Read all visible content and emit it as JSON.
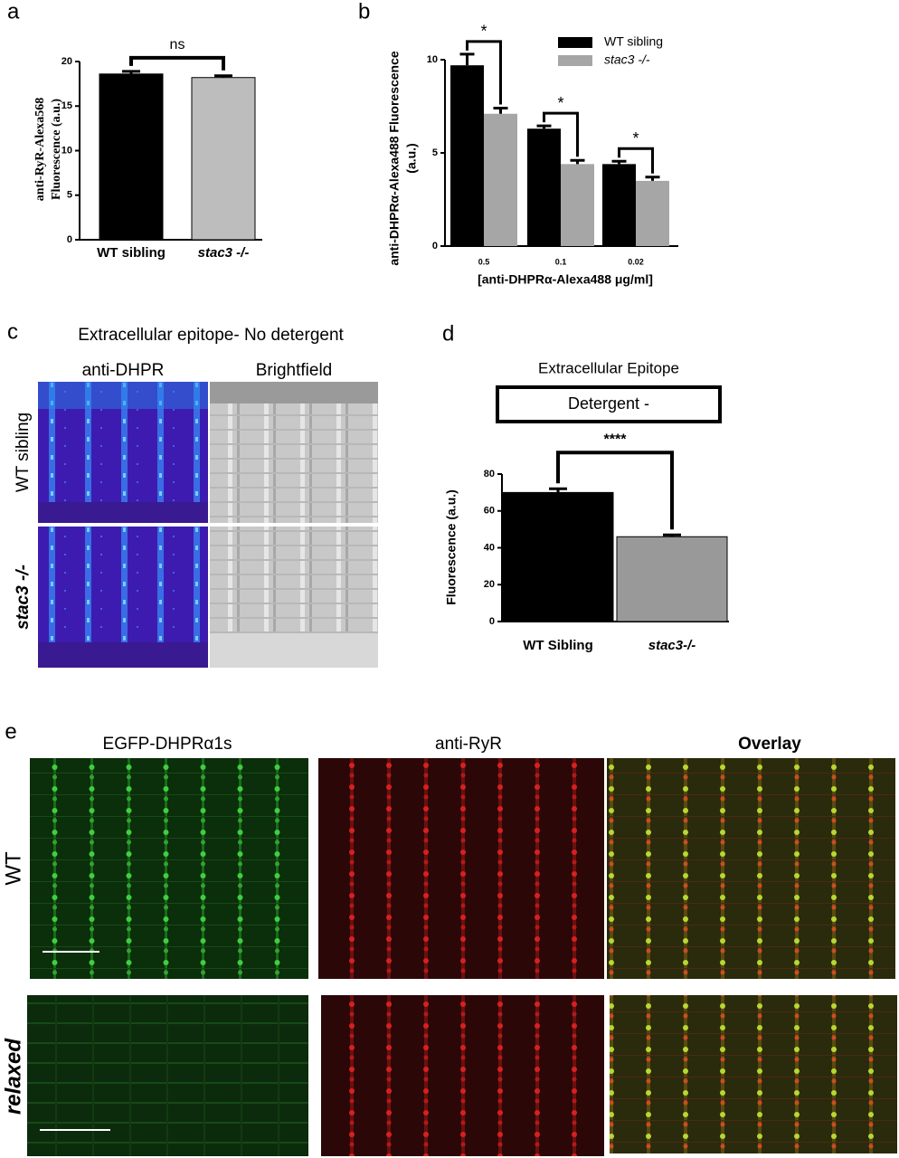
{
  "chart_data": [
    {
      "type": "bar",
      "panel_label": "a",
      "ylabel": [
        "anti-RyR-Alexa568",
        "Fluorescence (a.u.)"
      ],
      "categories": [
        "WT sibling",
        "stac3 -/-"
      ],
      "values": [
        18.6,
        18.2
      ],
      "errors": [
        0.3,
        0.2
      ],
      "colors": [
        "#000000",
        "#bdbdbd"
      ],
      "ylim": [
        0,
        20
      ],
      "yticks": [
        0,
        5,
        10,
        15,
        20
      ],
      "annotations": [
        "ns"
      ]
    },
    {
      "type": "grouped_bar",
      "panel_label": "b",
      "ylabel": [
        "anti-DHPRα-Alexa488 Fluorescence",
        "(a.u.)"
      ],
      "xlabel": "[anti-DHPRα-Alexa488  μg/ml]",
      "categories": [
        "0.5",
        "0.1",
        "0.02"
      ],
      "series": [
        {
          "name": "WT sibling",
          "color": "#000000",
          "values": [
            9.7,
            6.3,
            4.4
          ],
          "errors": [
            0.6,
            0.15,
            0.15
          ]
        },
        {
          "name": "stac3 -/-",
          "color": "#a6a6a6",
          "values": [
            7.1,
            4.4,
            3.5
          ],
          "errors": [
            0.3,
            0.2,
            0.2
          ]
        }
      ],
      "ylim": [
        0,
        10
      ],
      "yticks": [
        0,
        5,
        10
      ],
      "annotations": [
        "*",
        "*",
        "*"
      ],
      "legend": "top-right"
    },
    {
      "type": "bar",
      "panel_label": "d",
      "title": "Extracellular Epitope",
      "subtitle": "Detergent -",
      "ylabel": [
        "Fluorescence (a.u.)"
      ],
      "categories": [
        "WT Sibling",
        "stac3-/-"
      ],
      "values": [
        70,
        46
      ],
      "errors": [
        2,
        1
      ],
      "colors": [
        "#000000",
        "#999999"
      ],
      "ylim": [
        0,
        80
      ],
      "yticks": [
        0,
        20,
        40,
        60,
        80
      ],
      "annotations": [
        "****"
      ]
    }
  ],
  "figures": {
    "panel_c": {
      "label": "c",
      "title": "Extracellular epitope- No detergent",
      "columns": [
        "anti-DHPR",
        "Brightfield"
      ],
      "rows": [
        "WT sibling",
        "stac3 -/-"
      ]
    },
    "panel_e": {
      "label": "e",
      "columns": [
        "EGFP-DHPRα1s",
        "anti-RyR",
        "Overlay"
      ],
      "rows": [
        "WT",
        "relaxed"
      ]
    }
  }
}
